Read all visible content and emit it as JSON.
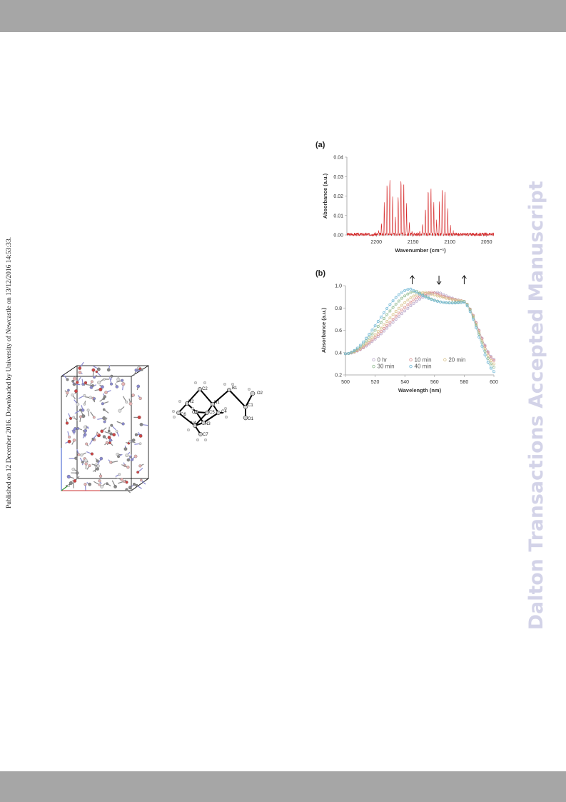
{
  "publication_note": "Published on 12 December 2016. Downloaded by University of Newcastle on 13/12/2016 14:53:33.",
  "watermark": "Dalton Transactions Accepted Manuscript",
  "atom_labels": [
    "C2",
    "N2",
    "B1",
    "N1",
    "C1",
    "O2",
    "C6",
    "C3",
    "C5",
    "C4",
    "N4",
    "N3",
    "O1",
    "C7"
  ],
  "chart_data": [
    {
      "type": "line",
      "panel_label": "(a)",
      "xlabel": "Wavenumber (cm⁻¹)",
      "ylabel": "Absorbance (a.u.)",
      "xlim": [
        2240,
        2040
      ],
      "ylim": [
        0,
        0.04
      ],
      "x_ticks": [
        "2200",
        "2150",
        "2100",
        "2050"
      ],
      "y_ticks": [
        "0.00",
        "0.01",
        "0.02",
        "0.03",
        "0.04"
      ],
      "series": [
        {
          "color": "#d62728",
          "bands": [
            {
              "center": 2174,
              "peak": 0.03
            },
            {
              "center": 2118,
              "peak": 0.025
            }
          ]
        }
      ]
    },
    {
      "type": "scatter",
      "panel_label": "(b)",
      "xlabel": "Wavelength (nm)",
      "ylabel": "Absorbance (a.u.)",
      "xlim": [
        500,
        600
      ],
      "ylim": [
        0.2,
        1.0
      ],
      "x_ticks": [
        "500",
        "520",
        "540",
        "560",
        "580",
        "600"
      ],
      "y_ticks": [
        "0.2",
        "0.4",
        "0.6",
        "0.8",
        "1.0"
      ],
      "arrows": [
        {
          "x": 545,
          "direction": "up"
        },
        {
          "x": 563,
          "direction": "down"
        },
        {
          "x": 580,
          "direction": "up"
        }
      ],
      "series": [
        {
          "name": "0 hr",
          "color": "#b9a6c9",
          "peak_x": 563,
          "peak_y": 0.94,
          "shoulder_x": 580,
          "shoulder_y": 0.86,
          "end_y": 0.34
        },
        {
          "name": "10 min",
          "color": "#d98c8c",
          "peak_x": 559,
          "peak_y": 0.94,
          "shoulder_x": 580,
          "shoulder_y": 0.86,
          "end_y": 0.33
        },
        {
          "name": "20 min",
          "color": "#d9c38c",
          "peak_x": 554,
          "peak_y": 0.94,
          "shoulder_x": 580,
          "shoulder_y": 0.86,
          "end_y": 0.3
        },
        {
          "name": "30 min",
          "color": "#8fb98f",
          "peak_x": 548,
          "peak_y": 0.95,
          "shoulder_x": 580,
          "shoulder_y": 0.86,
          "end_y": 0.27
        },
        {
          "name": "40 min",
          "color": "#6fb7d6",
          "peak_x": 544,
          "peak_y": 0.97,
          "shoulder_x": 580,
          "shoulder_y": 0.85,
          "end_y": 0.23
        }
      ]
    }
  ]
}
